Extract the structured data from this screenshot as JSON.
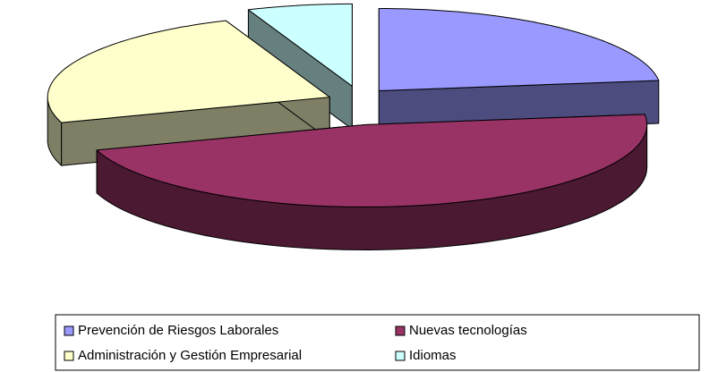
{
  "chart_data": {
    "type": "pie",
    "categories": [
      "Prevención de Riesgos Laborales",
      "Nuevas tecnologías",
      "Administración y Gestión Empresarial",
      "Idiomas"
    ],
    "values": [
      23,
      47,
      24,
      6
    ],
    "colors": [
      "#9999ff",
      "#993366",
      "#ffffcc",
      "#ccffff"
    ],
    "legend": "bottom"
  }
}
